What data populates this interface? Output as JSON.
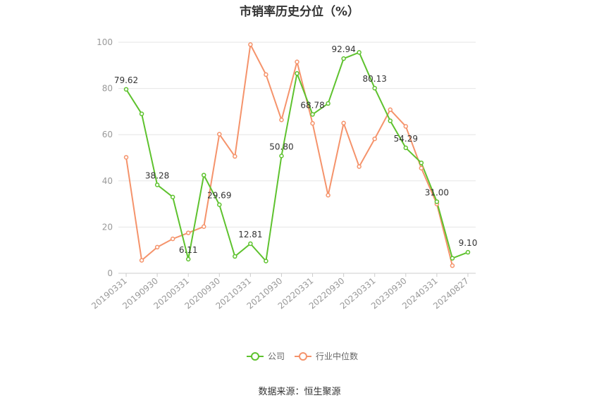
{
  "title": "市销率历史分位（%）",
  "source": "数据来源：恒生聚源",
  "colors": {
    "company": "#5ec22e",
    "industry": "#f5936b",
    "grid": "#e6e6e6",
    "axis": "#cccccc"
  },
  "chart_data": {
    "type": "line",
    "title": "市销率历史分位（%）",
    "ylim": [
      0,
      100
    ],
    "yticks": [
      0,
      20,
      40,
      60,
      80,
      100
    ],
    "grid": true,
    "legend_position": "bottom",
    "x": [
      "20190331",
      "20190630",
      "20190930",
      "20191231",
      "20200331",
      "20200630",
      "20200930",
      "20201231",
      "20210331",
      "20210630",
      "20210930",
      "20211231",
      "20220331",
      "20220630",
      "20220930",
      "20221231",
      "20230331",
      "20230630",
      "20230930",
      "20231231",
      "20240331",
      "20240630",
      "20240827"
    ],
    "x_tick_labels": [
      "20190331",
      "20190930",
      "20200331",
      "20200930",
      "20210331",
      "20210930",
      "20220331",
      "20220930",
      "20230331",
      "20230930",
      "20240331",
      "20240827"
    ],
    "series": [
      {
        "name": "公司",
        "values": [
          79.62,
          69.0,
          38.28,
          33.0,
          6.11,
          42.5,
          29.69,
          7.3,
          12.81,
          5.3,
          50.8,
          86.5,
          68.78,
          73.5,
          92.94,
          95.6,
          80.13,
          66.0,
          54.29,
          47.8,
          31.0,
          6.5,
          9.1
        ],
        "labels": [
          "79.62",
          "",
          "38.28",
          "",
          "6.11",
          "",
          "29.69",
          "",
          "12.81",
          "",
          "50.80",
          "",
          "68.78",
          "",
          "92.94",
          "",
          "80.13",
          "",
          "54.29",
          "",
          "31.00",
          "",
          "9.10"
        ]
      },
      {
        "name": "行业中位数",
        "values": [
          50.2,
          5.6,
          11.3,
          14.9,
          17.5,
          20.2,
          60.2,
          50.6,
          99.0,
          86.0,
          66.4,
          91.5,
          64.9,
          33.8,
          65.0,
          46.2,
          58.2,
          70.8,
          63.6,
          45.5,
          30.0,
          3.3,
          null
        ]
      }
    ]
  }
}
